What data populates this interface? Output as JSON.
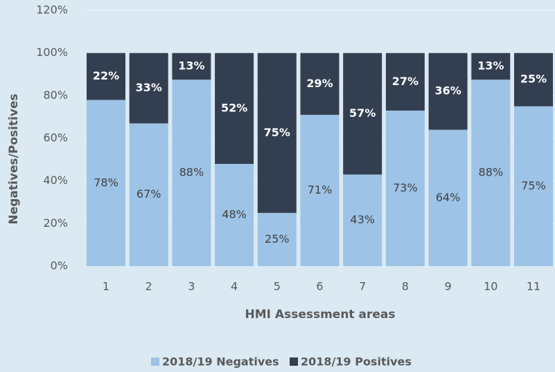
{
  "chart_data": {
    "type": "stacked_bar",
    "xlabel": "HMI Assessment areas",
    "ylabel": "Negatives/Positives",
    "categories": [
      "1",
      "2",
      "3",
      "4",
      "5",
      "6",
      "7",
      "8",
      "9",
      "10",
      "11"
    ],
    "series": [
      {
        "name": "2018/19 Negatives",
        "color": "#9dc3e6",
        "values": [
          78,
          67,
          87.5,
          48,
          25,
          71,
          43,
          73,
          64,
          87.5,
          75
        ],
        "value_labels": [
          "78%",
          "67%",
          "88%",
          "48%",
          "25%",
          "71%",
          "43%",
          "73%",
          "64%",
          "88%",
          "75%"
        ]
      },
      {
        "name": "2018/19 Positives",
        "color": "#333f50",
        "values": [
          22,
          33,
          12.5,
          52,
          75,
          29,
          57,
          27,
          36,
          12.5,
          25
        ],
        "value_labels": [
          "22%",
          "33%",
          "13%",
          "52%",
          "75%",
          "29%",
          "57%",
          "27%",
          "36%",
          "13%",
          "25%"
        ]
      }
    ],
    "ylim": [
      0,
      120
    ],
    "yticks": [
      {
        "value": 0,
        "label": "0%"
      },
      {
        "value": 20,
        "label": "20%"
      },
      {
        "value": 40,
        "label": "40%"
      },
      {
        "value": 60,
        "label": "60%"
      },
      {
        "value": 80,
        "label": "80%"
      },
      {
        "value": 100,
        "label": "100%"
      },
      {
        "value": 120,
        "label": "120%"
      }
    ],
    "grid": true,
    "legend": "bottom"
  }
}
